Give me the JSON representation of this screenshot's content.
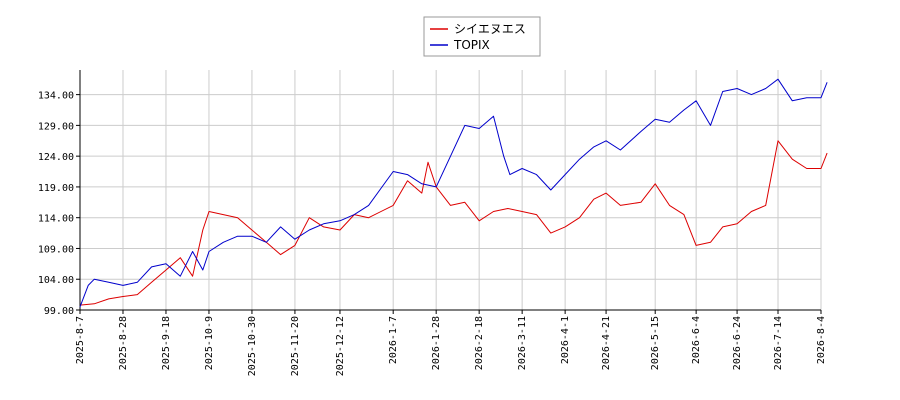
{
  "chart_data": {
    "type": "line",
    "title": "",
    "xlabel": "",
    "ylabel": "",
    "x_ticks": [
      "2025-8-7",
      "2025-8-28",
      "2025-9-18",
      "2025-10-9",
      "2025-10-30",
      "2025-11-20",
      "2025-12-12",
      "2026-1-7",
      "2026-1-28",
      "2026-2-18",
      "2026-3-11",
      "2026-4-1",
      "2026-4-21",
      "2026-5-15",
      "2026-6-4",
      "2026-6-24",
      "2026-7-14",
      "2026-8-4"
    ],
    "y_ticks": [
      "99.00",
      "104.00",
      "109.00",
      "114.00",
      "119.00",
      "124.00",
      "129.00",
      "134.00"
    ],
    "ylim": [
      99,
      138
    ],
    "grid": true,
    "legend_position": "top-center",
    "series": [
      {
        "name": "シイエヌエス",
        "color": "#dd0000",
        "x": [
          "2025-8-7",
          "2025-8-14",
          "2025-8-21",
          "2025-8-28",
          "2025-9-4",
          "2025-9-11",
          "2025-9-18",
          "2025-9-25",
          "2025-10-1",
          "2025-10-6",
          "2025-10-9",
          "2025-10-16",
          "2025-10-23",
          "2025-10-30",
          "2025-11-6",
          "2025-11-13",
          "2025-11-20",
          "2025-11-27",
          "2025-12-4",
          "2025-12-12",
          "2025-12-19",
          "2025-12-26",
          "2026-1-7",
          "2026-1-14",
          "2026-1-21",
          "2026-1-24",
          "2026-1-28",
          "2026-2-4",
          "2026-2-11",
          "2026-2-18",
          "2026-2-25",
          "2026-3-4",
          "2026-3-11",
          "2026-3-18",
          "2026-3-25",
          "2026-4-1",
          "2026-4-8",
          "2026-4-15",
          "2026-4-21",
          "2026-4-28",
          "2026-5-8",
          "2026-5-15",
          "2026-5-22",
          "2026-5-29",
          "2026-6-4",
          "2026-6-11",
          "2026-6-17",
          "2026-6-24",
          "2026-7-1",
          "2026-7-8",
          "2026-7-14",
          "2026-7-21",
          "2026-7-28",
          "2026-8-4",
          "2026-8-7"
        ],
        "values": [
          99.8,
          100.0,
          100.8,
          101.2,
          101.5,
          103.5,
          105.5,
          107.5,
          104.5,
          112.0,
          115.0,
          114.5,
          114.0,
          112.0,
          110.0,
          108.0,
          109.5,
          114.0,
          112.5,
          112.0,
          114.5,
          114.0,
          116.0,
          120.0,
          118.0,
          123.0,
          119.0,
          116.0,
          116.5,
          113.5,
          115.0,
          115.5,
          115.0,
          114.5,
          111.5,
          112.5,
          114.0,
          117.0,
          118.0,
          116.0,
          116.5,
          119.5,
          116.0,
          114.5,
          109.5,
          110.0,
          112.5,
          113.0,
          115.0,
          116.0,
          126.5,
          123.5,
          122.0,
          122.0,
          124.5
        ]
      },
      {
        "name": "TOPIX",
        "color": "#0000cc",
        "x": [
          "2025-8-7",
          "2025-8-11",
          "2025-8-14",
          "2025-8-21",
          "2025-8-28",
          "2025-9-4",
          "2025-9-11",
          "2025-9-18",
          "2025-9-25",
          "2025-10-1",
          "2025-10-6",
          "2025-10-9",
          "2025-10-16",
          "2025-10-23",
          "2025-10-30",
          "2025-11-6",
          "2025-11-13",
          "2025-11-20",
          "2025-11-27",
          "2025-12-4",
          "2025-12-12",
          "2025-12-19",
          "2025-12-26",
          "2026-1-7",
          "2026-1-14",
          "2026-1-21",
          "2026-1-28",
          "2026-2-4",
          "2026-2-11",
          "2026-2-18",
          "2026-2-25",
          "2026-3-2",
          "2026-3-5",
          "2026-3-11",
          "2026-3-18",
          "2026-3-25",
          "2026-4-1",
          "2026-4-8",
          "2026-4-15",
          "2026-4-21",
          "2026-4-28",
          "2026-5-8",
          "2026-5-15",
          "2026-5-22",
          "2026-5-29",
          "2026-6-4",
          "2026-6-11",
          "2026-6-17",
          "2026-6-24",
          "2026-7-1",
          "2026-7-8",
          "2026-7-14",
          "2026-7-21",
          "2026-7-28",
          "2026-8-4",
          "2026-8-7"
        ],
        "values": [
          99.5,
          103.0,
          104.0,
          103.5,
          103.0,
          103.5,
          106.0,
          106.5,
          104.5,
          108.5,
          105.5,
          108.5,
          110.0,
          111.0,
          111.0,
          110.0,
          112.5,
          110.5,
          112.0,
          113.0,
          113.5,
          114.5,
          116.0,
          121.5,
          121.0,
          119.5,
          119.0,
          124.0,
          129.0,
          128.5,
          130.5,
          124.0,
          121.0,
          122.0,
          121.0,
          118.5,
          121.0,
          123.5,
          125.5,
          126.5,
          125.0,
          128.0,
          130.0,
          129.5,
          131.5,
          133.0,
          129.0,
          134.5,
          135.0,
          134.0,
          135.0,
          136.5,
          133.0,
          133.5,
          133.5,
          136.0
        ]
      }
    ]
  }
}
